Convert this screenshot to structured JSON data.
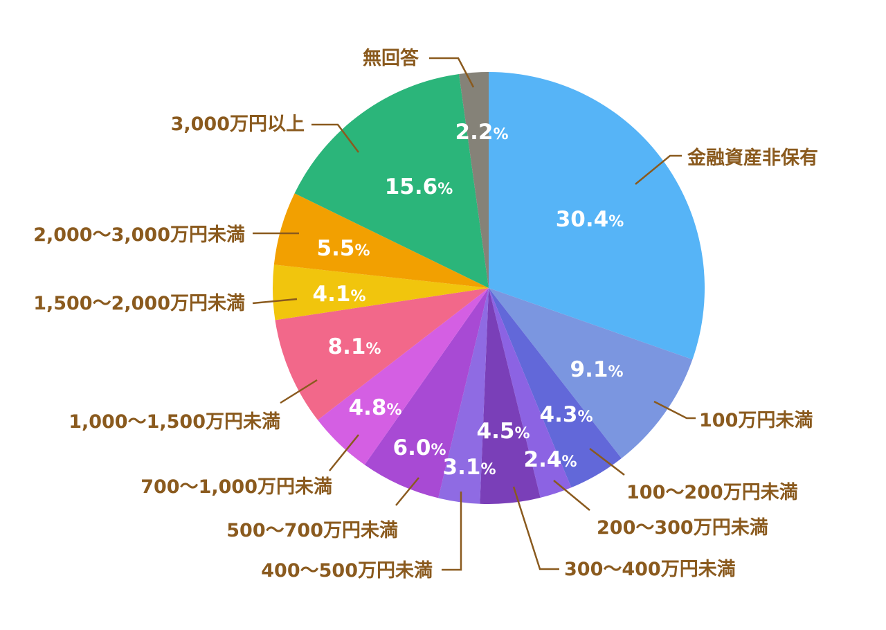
{
  "chart_data": {
    "type": "pie",
    "start_angle_deg": 0,
    "direction": "clockwise",
    "label_color": "#8a5a1e",
    "value_text_color": "#ffffff",
    "slices": [
      {
        "label": "金融資産非保有",
        "value": 30.4,
        "value_text": "30.4",
        "color": "#56b4f7"
      },
      {
        "label": "100万円未満",
        "value": 9.1,
        "value_text": "9.1",
        "color": "#7b96e0"
      },
      {
        "label": "100〜200万円未満",
        "value": 4.3,
        "value_text": "4.3",
        "color": "#6268d9"
      },
      {
        "label": "200〜300万円未満",
        "value": 2.4,
        "value_text": "2.4",
        "color": "#8c63e3"
      },
      {
        "label": "300〜400万円未満",
        "value": 4.5,
        "value_text": "4.5",
        "color": "#7a3fb8"
      },
      {
        "label": "400〜500万円未満",
        "value": 3.1,
        "value_text": "3.1",
        "color": "#8f6be3"
      },
      {
        "label": "500〜700万円未満",
        "value": 6.0,
        "value_text": "6.0",
        "color": "#a84ad4"
      },
      {
        "label": "700〜1,000万円未満",
        "value": 4.8,
        "value_text": "4.8",
        "color": "#d45fe3"
      },
      {
        "label": "1,000〜1,500万円未満",
        "value": 8.1,
        "value_text": "8.1",
        "color": "#f2688a"
      },
      {
        "label": "1,500〜2,000万円未満",
        "value": 4.1,
        "value_text": "4.1",
        "color": "#f1c50d"
      },
      {
        "label": "2,000〜3,000万円未満",
        "value": 5.5,
        "value_text": "5.5",
        "color": "#f2a001"
      },
      {
        "label": "3,000万円以上",
        "value": 15.6,
        "value_text": "15.6",
        "color": "#2bb57a"
      },
      {
        "label": "無回答",
        "value": 2.2,
        "value_text": "2.2",
        "color": "#858278"
      }
    ],
    "percent_sign": "%"
  }
}
